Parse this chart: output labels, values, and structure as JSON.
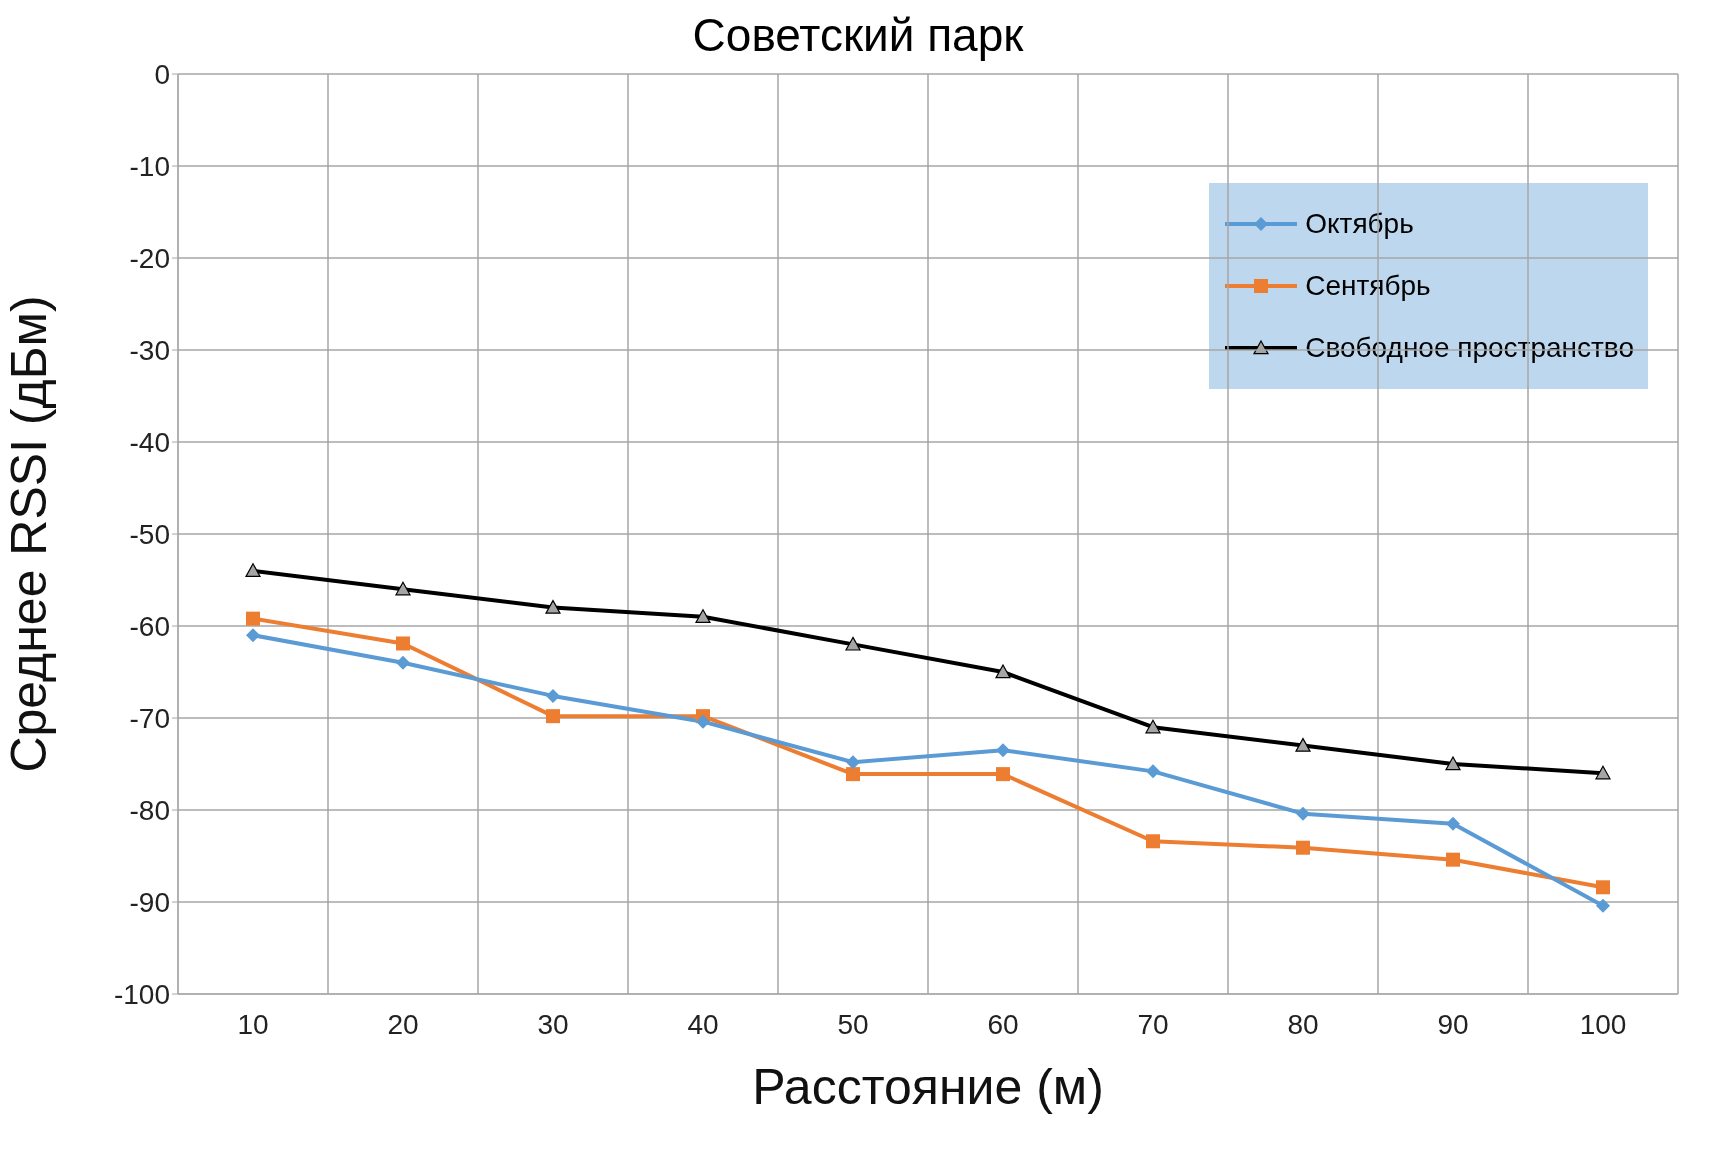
{
  "chart_data": {
    "type": "line",
    "title": "Советский парк",
    "xlabel": "Расстояние (м)",
    "ylabel": "Среднее RSSI (дБм)",
    "categories": [
      "10",
      "20",
      "30",
      "40",
      "50",
      "60",
      "70",
      "80",
      "90",
      "100"
    ],
    "series": [
      {
        "name": "Октябрь",
        "color": "#5b9bd5",
        "marker": "diamond",
        "values": [
          -61,
          -64,
          -67.6,
          -70.4,
          -74.8,
          -73.5,
          -75.8,
          -80.4,
          -81.5,
          -90.4
        ]
      },
      {
        "name": "Сентябрь",
        "color": "#ed7d31",
        "marker": "square",
        "values": [
          -59.2,
          -61.9,
          -69.8,
          -69.8,
          -76.1,
          -76.1,
          -83.4,
          -84.1,
          -85.4,
          -88.4
        ]
      },
      {
        "name": "Свободное пространство",
        "color": "#000000",
        "marker": "triangle",
        "values": [
          -54,
          -56,
          -58,
          -59,
          -62,
          -65,
          -71,
          -73,
          -75,
          -76
        ]
      }
    ],
    "ylim": [
      -100,
      0
    ],
    "yticks": [
      -100,
      -90,
      -80,
      -70,
      -60,
      -50,
      -40,
      -30,
      -20,
      -10,
      0
    ],
    "grid": true,
    "legend": "top right",
    "line_style": "solid"
  }
}
